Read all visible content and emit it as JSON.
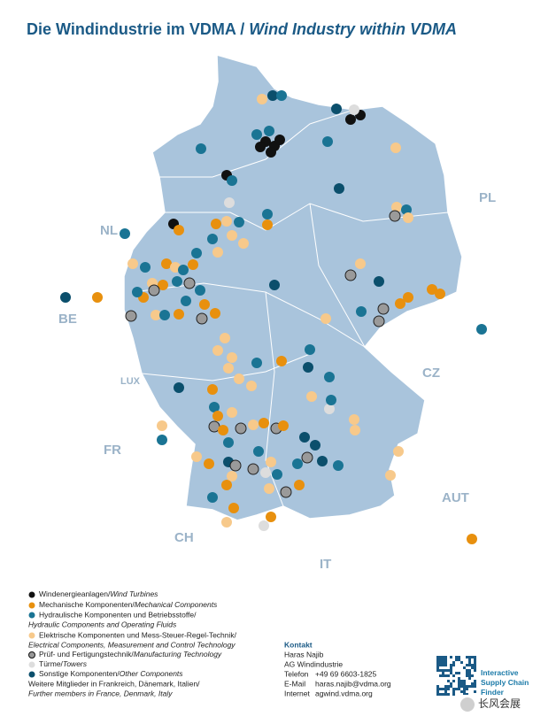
{
  "title": {
    "german": "Die Windindustrie im VDMA",
    "separator": "/",
    "english": "Wind Industry within VDMA"
  },
  "countries": [
    "NL",
    "BE",
    "LUX",
    "FR",
    "CH",
    "IT",
    "AUT",
    "CZ",
    "PL"
  ],
  "legend": [
    {
      "german": "Windenergieanlagen/",
      "english": "Wind Turbines"
    },
    {
      "german": "Mechanische Komponenten/",
      "english": "Mechanical Components"
    },
    {
      "german": "Hydraulische Komponenten und Betriebsstoffe/",
      "english": "Hydraulic Components and Operating Fluids"
    },
    {
      "german": "Elektrische Komponenten und Mess-Steuer-Regel-Technik/",
      "english": "Electrical Components, Measurement and Control Technology"
    },
    {
      "german": "Prüf- und Fertigungstechnik/",
      "english": "Manufacturing Technology"
    },
    {
      "german": "Türme/",
      "english": "Towers"
    },
    {
      "german": "Sonstige Komponenten/",
      "english": "Other Components"
    }
  ],
  "further": {
    "german": "Weitere Mitglieder in Frankreich, Dänemark, Italien/",
    "english": "Further members in France, Denmark, Italy"
  },
  "contact": {
    "heading": "Kontakt",
    "name": "Haras Najib",
    "org": "AG Windindustrie",
    "rows": [
      [
        "Telefon",
        "+49 69 6603-1825"
      ],
      [
        "E-Mail",
        "haras.najib@vdma.org"
      ],
      [
        "Internet",
        "agwind.vdma.org"
      ]
    ]
  },
  "qr": {
    "label": "Interactive Supply Chain Finder"
  },
  "watermark": "长风会展"
}
